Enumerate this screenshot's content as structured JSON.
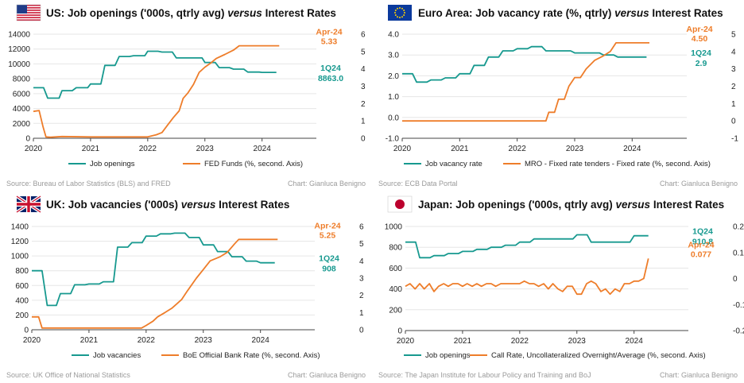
{
  "colors": {
    "teal": "#17998f",
    "orange": "#ee7d2a",
    "grid": "#e6e6e6",
    "axis": "#444444"
  },
  "chart_data": [
    {
      "type": "line",
      "flag": "us-flag",
      "title_main": "US: Job openings ('000s, qtrly avg) ",
      "title_versus": "versus",
      "title_tail": " Interest Rates",
      "x_ticks": [
        "2020",
        "2021",
        "2022",
        "2023",
        "2024"
      ],
      "x_range": [
        2020.0,
        2024.95
      ],
      "y_left": {
        "min": 0,
        "max": 14000,
        "ticks": [
          "0",
          "2000",
          "4000",
          "6000",
          "8000",
          "10000",
          "12000",
          "14000"
        ]
      },
      "y_right": {
        "min": 0,
        "max": 6,
        "ticks": [
          "0",
          "1",
          "2",
          "3",
          "4",
          "5",
          "6"
        ]
      },
      "series": [
        {
          "name": "Job openings",
          "axis": "left",
          "color": "teal",
          "x": [
            2020.0,
            2020.18,
            2020.25,
            2020.45,
            2020.5,
            2020.68,
            2020.75,
            2020.95,
            2021.0,
            2021.18,
            2021.25,
            2021.43,
            2021.5,
            2021.68,
            2021.75,
            2021.95,
            2022.0,
            2022.18,
            2022.25,
            2022.43,
            2022.5,
            2022.68,
            2022.75,
            2022.95,
            2023.0,
            2023.18,
            2023.25,
            2023.43,
            2023.5,
            2023.68,
            2023.75,
            2023.95,
            2024.0,
            2024.25
          ],
          "y": [
            6800,
            6800,
            5400,
            5400,
            6400,
            6400,
            6800,
            6800,
            7300,
            7300,
            9800,
            9800,
            11000,
            11000,
            11100,
            11100,
            11700,
            11700,
            11600,
            11600,
            10800,
            10800,
            10800,
            10800,
            10200,
            10200,
            9500,
            9500,
            9300,
            9300,
            8900,
            8900,
            8863,
            8863
          ]
        },
        {
          "name": "FED Funds (%, second. Axis)",
          "axis": "right",
          "color": "orange",
          "x": [
            2020.0,
            2020.1,
            2020.17,
            2020.22,
            2020.3,
            2020.5,
            2021.0,
            2021.5,
            2022.0,
            2022.15,
            2022.25,
            2022.35,
            2022.45,
            2022.55,
            2022.62,
            2022.7,
            2022.8,
            2022.9,
            2023.0,
            2023.1,
            2023.2,
            2023.35,
            2023.5,
            2023.6,
            2024.0,
            2024.3
          ],
          "y": [
            1.55,
            1.6,
            0.65,
            0.08,
            0.06,
            0.1,
            0.08,
            0.08,
            0.08,
            0.2,
            0.33,
            0.77,
            1.2,
            1.58,
            2.3,
            2.6,
            3.1,
            3.8,
            4.1,
            4.33,
            4.6,
            4.83,
            5.08,
            5.33,
            5.33,
            5.33
          ]
        }
      ],
      "label_left": {
        "text1": "1Q24",
        "text2": "8863.0",
        "color": "teal"
      },
      "label_right": {
        "text1": "Apr-24",
        "text2": "5.33",
        "color": "orange"
      },
      "legend": [
        "Job openings",
        "FED Funds (%, second. Axis)"
      ],
      "source": "Source: Bureau of Labor Statistics (BLS) and FRED",
      "credit": "Chart: Gianluca Benigno"
    },
    {
      "type": "line",
      "flag": "eu-flag",
      "title_main": "Euro Area: Job vacancy rate (%, qtrly) ",
      "title_versus": "versus",
      "title_tail": " Interest Rates",
      "x_ticks": [
        "2020",
        "2021",
        "2022",
        "2023",
        "2024"
      ],
      "x_range": [
        2020.0,
        2024.95
      ],
      "y_left": {
        "min": -1,
        "max": 4,
        "ticks": [
          "-1.0",
          "0.0",
          "1.0",
          "2.0",
          "3.0",
          "4.0"
        ]
      },
      "y_right": {
        "min": -1,
        "max": 5,
        "ticks": [
          "-1",
          "0",
          "1",
          "2",
          "3",
          "4",
          "5"
        ]
      },
      "series": [
        {
          "name": "Job vacancy rate",
          "axis": "left",
          "color": "teal",
          "x": [
            2020.0,
            2020.18,
            2020.25,
            2020.43,
            2020.5,
            2020.68,
            2020.75,
            2020.93,
            2021.0,
            2021.18,
            2021.25,
            2021.43,
            2021.5,
            2021.68,
            2021.75,
            2021.93,
            2022.0,
            2022.18,
            2022.25,
            2022.43,
            2022.5,
            2022.68,
            2022.75,
            2022.93,
            2023.0,
            2023.18,
            2023.25,
            2023.43,
            2023.5,
            2023.68,
            2023.75,
            2023.93,
            2024.0,
            2024.25
          ],
          "y": [
            2.1,
            2.1,
            1.7,
            1.7,
            1.8,
            1.8,
            1.9,
            1.9,
            2.1,
            2.1,
            2.5,
            2.5,
            2.9,
            2.9,
            3.2,
            3.2,
            3.3,
            3.3,
            3.4,
            3.4,
            3.2,
            3.2,
            3.2,
            3.2,
            3.1,
            3.1,
            3.1,
            3.1,
            3.0,
            3.0,
            2.9,
            2.9,
            2.9,
            2.9
          ]
        },
        {
          "name": "MRO - Fixed rate tenders - Fixed rate (%, second. Axis)",
          "axis": "right",
          "color": "orange",
          "x": [
            2020.0,
            2022.5,
            2022.55,
            2022.65,
            2022.72,
            2022.82,
            2022.9,
            2023.0,
            2023.1,
            2023.2,
            2023.35,
            2023.5,
            2023.62,
            2023.72,
            2024.0,
            2024.3
          ],
          "y": [
            0.0,
            0.0,
            0.5,
            0.5,
            1.25,
            1.25,
            2.0,
            2.5,
            2.5,
            3.0,
            3.5,
            3.75,
            4.0,
            4.5,
            4.5,
            4.5
          ]
        }
      ],
      "label_left": {
        "text1": "1Q24",
        "text2": "2.9",
        "color": "teal"
      },
      "label_right": {
        "text1": "Apr-24",
        "text2": "4.50",
        "color": "orange"
      },
      "legend": [
        "Job vacancy rate",
        "MRO - Fixed rate tenders - Fixed rate (%, second. Axis)"
      ],
      "source": "Source: ECB Data Portal",
      "credit": "Chart: Gianluca Benigno"
    },
    {
      "type": "line",
      "flag": "uk-flag",
      "title_main": "UK: Job vacancies ('000s) ",
      "title_versus": "versus",
      "title_tail": " Interest Rates",
      "x_ticks": [
        "2020",
        "2021",
        "2022",
        "2023",
        "2024"
      ],
      "x_range": [
        2020.0,
        2024.95
      ],
      "y_left": {
        "min": 0,
        "max": 1400,
        "ticks": [
          "0",
          "200",
          "400",
          "600",
          "800",
          "1000",
          "1200",
          "1400"
        ]
      },
      "y_right": {
        "min": 0,
        "max": 6,
        "ticks": [
          "0",
          "1",
          "2",
          "3",
          "4",
          "5",
          "6"
        ]
      },
      "series": [
        {
          "name": "Job vacancies",
          "axis": "left",
          "color": "teal",
          "x": [
            2020.0,
            2020.18,
            2020.27,
            2020.43,
            2020.5,
            2020.68,
            2020.75,
            2020.93,
            2021.0,
            2021.18,
            2021.25,
            2021.43,
            2021.5,
            2021.68,
            2021.75,
            2021.93,
            2022.0,
            2022.18,
            2022.25,
            2022.43,
            2022.5,
            2022.68,
            2022.75,
            2022.93,
            2023.0,
            2023.18,
            2023.25,
            2023.43,
            2023.5,
            2023.68,
            2023.75,
            2023.93,
            2024.0,
            2024.25
          ],
          "y": [
            800,
            800,
            330,
            330,
            490,
            490,
            610,
            610,
            620,
            620,
            650,
            650,
            1120,
            1120,
            1180,
            1180,
            1270,
            1270,
            1300,
            1300,
            1310,
            1310,
            1250,
            1250,
            1150,
            1150,
            1060,
            1060,
            990,
            990,
            930,
            930,
            908,
            908
          ]
        },
        {
          "name": "BoE Official Bank Rate (%, second. Axis)",
          "axis": "right",
          "color": "orange",
          "x": [
            2020.0,
            2020.12,
            2020.18,
            2021.92,
            2022.0,
            2022.12,
            2022.2,
            2022.33,
            2022.45,
            2022.62,
            2022.72,
            2022.88,
            2023.0,
            2023.12,
            2023.3,
            2023.42,
            2023.55,
            2023.62,
            2024.0,
            2024.3
          ],
          "y": [
            0.75,
            0.75,
            0.1,
            0.1,
            0.25,
            0.5,
            0.75,
            1.0,
            1.25,
            1.75,
            2.25,
            3.0,
            3.5,
            4.0,
            4.25,
            4.5,
            5.0,
            5.25,
            5.25,
            5.25
          ]
        }
      ],
      "label_left": {
        "text1": "1Q24",
        "text2": "908",
        "color": "teal"
      },
      "label_right": {
        "text1": "Apr-24",
        "text2": "5.25",
        "color": "orange"
      },
      "legend": [
        "Job vacancies",
        "BoE Official Bank Rate (%, second. Axis)"
      ],
      "source": "Source: UK Office of National Statistics",
      "credit": "Chart: Gianluca Benigno"
    },
    {
      "type": "line",
      "flag": "jp-flag",
      "title_main": "Japan: Job openings ('000s, qtrly avg) ",
      "title_versus": "versus",
      "title_tail": " Interest Rates",
      "x_ticks": [
        "2020",
        "2021",
        "2022",
        "2023",
        "2024"
      ],
      "x_range": [
        2020.0,
        2024.95
      ],
      "y_left": {
        "min": 0,
        "max": 1000,
        "ticks": [
          "0",
          "200",
          "400",
          "600",
          "800",
          "1000"
        ]
      },
      "y_right": {
        "min": -0.2,
        "max": 0.2,
        "ticks": [
          "-0.2",
          "-0.1",
          "0",
          "0.1",
          "0.2"
        ]
      },
      "series": [
        {
          "name": "Job openings",
          "axis": "left",
          "color": "teal",
          "x": [
            2020.0,
            2020.18,
            2020.25,
            2020.43,
            2020.5,
            2020.68,
            2020.75,
            2020.93,
            2021.0,
            2021.18,
            2021.25,
            2021.43,
            2021.5,
            2021.68,
            2021.75,
            2021.93,
            2022.0,
            2022.18,
            2022.25,
            2022.43,
            2022.5,
            2022.68,
            2022.75,
            2022.93,
            2023.0,
            2023.18,
            2023.25,
            2023.43,
            2023.5,
            2023.68,
            2023.75,
            2023.93,
            2024.0,
            2024.25
          ],
          "y": [
            850,
            850,
            700,
            700,
            720,
            720,
            740,
            740,
            760,
            760,
            780,
            780,
            800,
            800,
            820,
            820,
            850,
            850,
            880,
            880,
            880,
            880,
            880,
            880,
            920,
            920,
            850,
            850,
            850,
            850,
            850,
            850,
            910.8,
            910.8
          ]
        },
        {
          "name": "Call Rate, Uncollateralized Overnight/Average (%, second. Axis)",
          "axis": "right",
          "color": "orange",
          "x": [
            2020.0,
            2020.08,
            2020.17,
            2020.25,
            2020.33,
            2020.42,
            2020.5,
            2020.58,
            2020.67,
            2020.75,
            2020.83,
            2020.92,
            2021.0,
            2021.08,
            2021.17,
            2021.25,
            2021.33,
            2021.42,
            2021.5,
            2021.58,
            2021.67,
            2021.75,
            2021.83,
            2021.92,
            2022.0,
            2022.08,
            2022.17,
            2022.25,
            2022.33,
            2022.42,
            2022.5,
            2022.58,
            2022.67,
            2022.75,
            2022.83,
            2022.92,
            2023.0,
            2023.08,
            2023.17,
            2023.25,
            2023.33,
            2023.42,
            2023.5,
            2023.58,
            2023.67,
            2023.75,
            2023.83,
            2023.92,
            2024.0,
            2024.08,
            2024.17,
            2024.25
          ],
          "y": [
            -0.03,
            -0.02,
            -0.04,
            -0.02,
            -0.04,
            -0.02,
            -0.05,
            -0.03,
            -0.02,
            -0.03,
            -0.02,
            -0.02,
            -0.03,
            -0.02,
            -0.03,
            -0.02,
            -0.03,
            -0.02,
            -0.02,
            -0.03,
            -0.02,
            -0.02,
            -0.02,
            -0.02,
            -0.02,
            -0.01,
            -0.02,
            -0.02,
            -0.03,
            -0.02,
            -0.04,
            -0.02,
            -0.04,
            -0.05,
            -0.03,
            -0.03,
            -0.06,
            -0.06,
            -0.02,
            -0.01,
            -0.02,
            -0.05,
            -0.04,
            -0.06,
            -0.04,
            -0.05,
            -0.02,
            -0.02,
            -0.01,
            -0.01,
            0.0,
            0.077
          ]
        }
      ],
      "label_left": {
        "text1": "1Q24",
        "text2": "910.8",
        "color": "teal"
      },
      "label_right": {
        "text1": "Apr-24",
        "text2": "0.077",
        "color": "orange"
      },
      "legend": [
        "Job openings",
        "Call Rate, Uncollateralized Overnight/Average (%, second. Axis)"
      ],
      "source": "Source: The Japan Institute for Labour Policy and Training  and BoJ",
      "credit": "Chart: Gianluca Benigno"
    }
  ]
}
